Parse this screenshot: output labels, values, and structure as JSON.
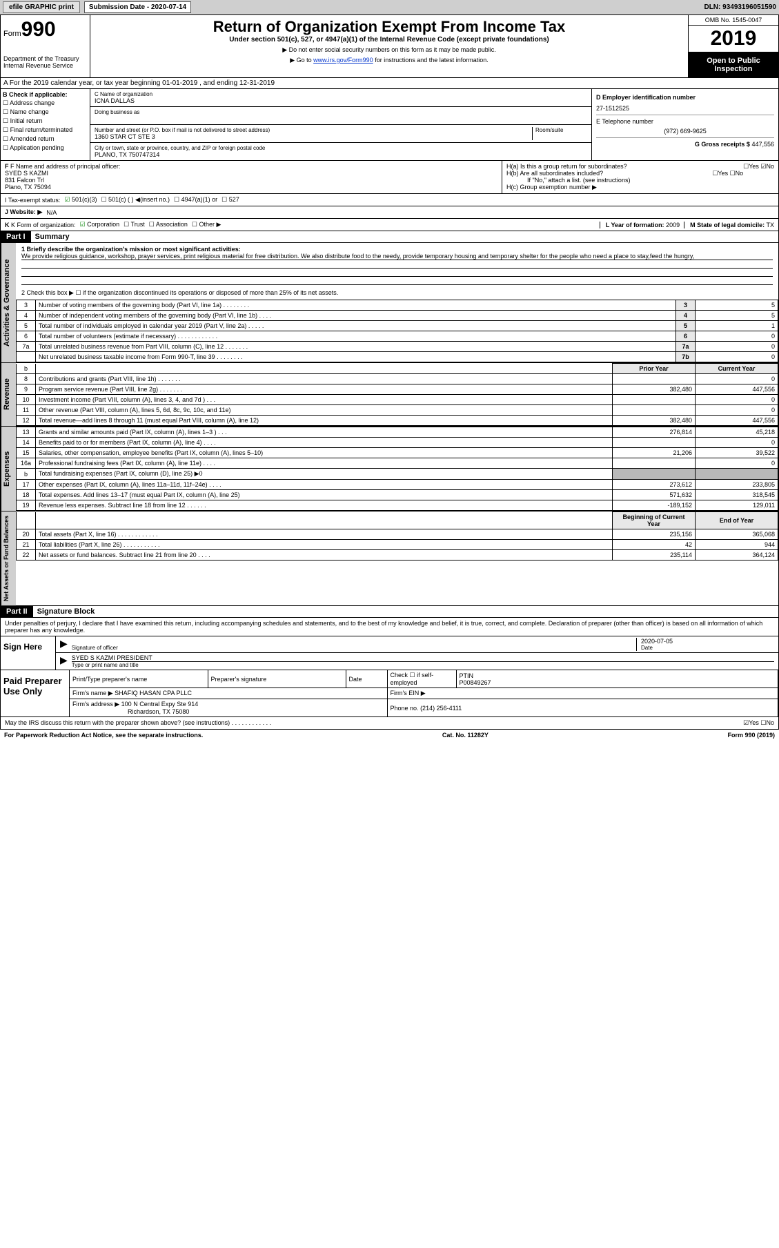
{
  "top_bar": {
    "efile": "efile GRAPHIC print",
    "sub_label": "Submission Date - 2020-07-14",
    "dln": "DLN: 93493196051590"
  },
  "header": {
    "form_word": "Form",
    "form_num": "990",
    "dept": "Department of the Treasury\nInternal Revenue Service",
    "title": "Return of Organization Exempt From Income Tax",
    "subtitle": "Under section 501(c), 527, or 4947(a)(1) of the Internal Revenue Code (except private foundations)",
    "note1": "▶ Do not enter social security numbers on this form as it may be made public.",
    "note2_pre": "▶ Go to ",
    "note2_link": "www.irs.gov/Form990",
    "note2_post": " for instructions and the latest information.",
    "omb": "OMB No. 1545-0047",
    "year": "2019",
    "open": "Open to Public Inspection"
  },
  "section_a": "A For the 2019 calendar year, or tax year beginning 01-01-2019     , and ending 12-31-2019",
  "col_b": {
    "title": "B Check if applicable:",
    "items": [
      "Address change",
      "Name change",
      "Initial return",
      "Final return/terminated",
      "Amended return",
      "Application pending"
    ]
  },
  "col_c": {
    "name_lbl": "C Name of organization",
    "name": "ICNA DALLAS",
    "dba_lbl": "Doing business as",
    "addr_lbl": "Number and street (or P.O. box if mail is not delivered to street address)",
    "room_lbl": "Room/suite",
    "addr": "1360 STAR CT STE 3",
    "city_lbl": "City or town, state or province, country, and ZIP or foreign postal code",
    "city": "PLANO, TX   750747314"
  },
  "col_d": {
    "ein_lbl": "D Employer identification number",
    "ein": "27-1512525",
    "tel_lbl": "E Telephone number",
    "tel": "(972) 669-9625",
    "gross_lbl": "G Gross receipts $",
    "gross": "447,556"
  },
  "row_f": {
    "lbl": "F Name and address of principal officer:",
    "name": "SYED S KAZMI",
    "addr1": "831 Falcon Trl",
    "addr2": "Plano, TX   75094"
  },
  "row_h": {
    "ha": "H(a)  Is this a group return for subordinates?",
    "ha_yes": "☐Yes  ☑No",
    "hb": "H(b)  Are all subordinates included?",
    "hb_yes": "☐Yes  ☐No",
    "hb_note": "If \"No,\" attach a list. (see instructions)",
    "hc": "H(c)  Group exemption number ▶"
  },
  "tax_exempt": {
    "lbl": "I    Tax-exempt status:",
    "opt1": "501(c)(3)",
    "opt2": "501(c) (   ) ◀(insert no.)",
    "opt3": "4947(a)(1) or",
    "opt4": "527"
  },
  "website": {
    "lbl": "J   Website: ▶",
    "val": "N/A"
  },
  "row_k": {
    "lbl": "K Form of organization:",
    "opts": [
      "Corporation",
      "Trust",
      "Association",
      "Other ▶"
    ],
    "l_lbl": "L Year of formation:",
    "l_val": "2009",
    "m_lbl": "M State of legal domicile:",
    "m_val": "TX"
  },
  "part1": {
    "hdr": "Part I",
    "title": "Summary",
    "mission_lbl": "1  Briefly describe the organization's mission or most significant activities:",
    "mission": "We provide religious guidance, workshop, prayer services, print religious material for free distribution. We also distribute food to the needy, provide temporary housing and temporary shelter for the people who need a place to stay,feed the hungry,",
    "line2": "2       Check this box ▶ ☐  if the organization discontinued its operations or disposed of more than 25% of its net assets."
  },
  "governance_rows": [
    {
      "n": "3",
      "t": "Number of voting members of the governing body (Part VI, line 1a)   .   .   .   .   .   .   .   .",
      "bn": "3",
      "v": "5"
    },
    {
      "n": "4",
      "t": "Number of independent voting members of the governing body (Part VI, line 1b)   .   .   .   .",
      "bn": "4",
      "v": "5"
    },
    {
      "n": "5",
      "t": "Total number of individuals employed in calendar year 2019 (Part V, line 2a)   .   .   .   .   .",
      "bn": "5",
      "v": "1"
    },
    {
      "n": "6",
      "t": "Total number of volunteers (estimate if necessary)   .   .   .   .   .   .   .   .   .   .   .   .",
      "bn": "6",
      "v": "0"
    },
    {
      "n": "7a",
      "t": "Total unrelated business revenue from Part VIII, column (C), line 12   .   .   .   .   .   .   .",
      "bn": "7a",
      "v": "0"
    },
    {
      "n": "",
      "t": "Net unrelated business taxable income from Form 990-T, line 39   .   .   .   .   .   .   .   .",
      "bn": "7b",
      "v": "0"
    }
  ],
  "two_col_hdr": {
    "prior": "Prior Year",
    "current": "Current Year"
  },
  "revenue_rows": [
    {
      "n": "8",
      "t": "Contributions and grants (Part VIII, line 1h)   .   .   .   .   .   .   .",
      "p": "",
      "c": "0"
    },
    {
      "n": "9",
      "t": "Program service revenue (Part VIII, line 2g)   .   .   .   .   .   .   .",
      "p": "382,480",
      "c": "447,556"
    },
    {
      "n": "10",
      "t": "Investment income (Part VIII, column (A), lines 3, 4, and 7d )   .   .   .",
      "p": "",
      "c": "0"
    },
    {
      "n": "11",
      "t": "Other revenue (Part VIII, column (A), lines 5, 6d, 8c, 9c, 10c, and 11e)",
      "p": "",
      "c": "0"
    },
    {
      "n": "12",
      "t": "Total revenue—add lines 8 through 11 (must equal Part VIII, column (A), line 12)",
      "p": "382,480",
      "c": "447,556"
    }
  ],
  "expense_rows": [
    {
      "n": "13",
      "t": "Grants and similar amounts paid (Part IX, column (A), lines 1–3 )   .   .   .",
      "p": "276,814",
      "c": "45,218"
    },
    {
      "n": "14",
      "t": "Benefits paid to or for members (Part IX, column (A), line 4)   .   .   .   .",
      "p": "",
      "c": "0"
    },
    {
      "n": "15",
      "t": "Salaries, other compensation, employee benefits (Part IX, column (A), lines 5–10)",
      "p": "21,206",
      "c": "39,522"
    },
    {
      "n": "16a",
      "t": "Professional fundraising fees (Part IX, column (A), line 11e)   .   .   .   .",
      "p": "",
      "c": "0"
    },
    {
      "n": "b",
      "t": "Total fundraising expenses (Part IX, column (D), line 25) ▶0",
      "p": "shade",
      "c": "shade"
    },
    {
      "n": "17",
      "t": "Other expenses (Part IX, column (A), lines 11a–11d, 11f–24e)   .   .   .   .",
      "p": "273,612",
      "c": "233,805"
    },
    {
      "n": "18",
      "t": "Total expenses. Add lines 13–17 (must equal Part IX, column (A), line 25)",
      "p": "571,632",
      "c": "318,545"
    },
    {
      "n": "19",
      "t": "Revenue less expenses. Subtract line 18 from line 12   .   .   .   .   .   .",
      "p": "-189,152",
      "c": "129,011"
    }
  ],
  "net_hdr": {
    "begin": "Beginning of Current Year",
    "end": "End of Year"
  },
  "net_rows": [
    {
      "n": "20",
      "t": "Total assets (Part X, line 16)   .   .   .   .   .   .   .   .   .   .   .   .",
      "p": "235,156",
      "c": "365,068"
    },
    {
      "n": "21",
      "t": "Total liabilities (Part X, line 26)   .   .   .   .   .   .   .   .   .   .   .",
      "p": "42",
      "c": "944"
    },
    {
      "n": "22",
      "t": "Net assets or fund balances. Subtract line 21 from line 20   .   .   .   .",
      "p": "235,114",
      "c": "364,124"
    }
  ],
  "part2": {
    "hdr": "Part II",
    "title": "Signature Block",
    "penalty": "Under penalties of perjury, I declare that I have examined this return, including accompanying schedules and statements, and to the best of my knowledge and belief, it is true, correct, and complete. Declaration of preparer (other than officer) is based on all information of which preparer has any knowledge."
  },
  "sign": {
    "here": "Sign Here",
    "sig_lbl": "Signature of officer",
    "date": "2020-07-05",
    "date_lbl": "Date",
    "name": "SYED S KAZMI PRESIDENT",
    "name_lbl": "Type or print name and title"
  },
  "prep": {
    "title": "Paid Preparer Use Only",
    "col1": "Print/Type preparer's name",
    "col2": "Preparer's signature",
    "col3": "Date",
    "col4": "Check ☐ if self-employed",
    "col5_lbl": "PTIN",
    "col5": "P00849267",
    "firm_lbl": "Firm's name      ▶",
    "firm": "SHAFIQ HASAN CPA PLLC",
    "ein_lbl": "Firm's EIN ▶",
    "addr_lbl": "Firm's address ▶",
    "addr1": "100 N Central Expy Ste 914",
    "addr2": "Richardson, TX   75080",
    "phone_lbl": "Phone no.",
    "phone": "(214) 256-4111"
  },
  "footer": {
    "q": "May the IRS discuss this return with the preparer shown above? (see instructions)    .    .    .    .    .    .    .    .    .    .    .    .",
    "yn": "☑Yes   ☐No",
    "paperwork": "For Paperwork Reduction Act Notice, see the separate instructions.",
    "cat": "Cat. No. 11282Y",
    "form": "Form 990 (2019)"
  },
  "vert": {
    "gov": "Activities & Governance",
    "rev": "Revenue",
    "exp": "Expenses",
    "net": "Net Assets or Fund Balances"
  }
}
